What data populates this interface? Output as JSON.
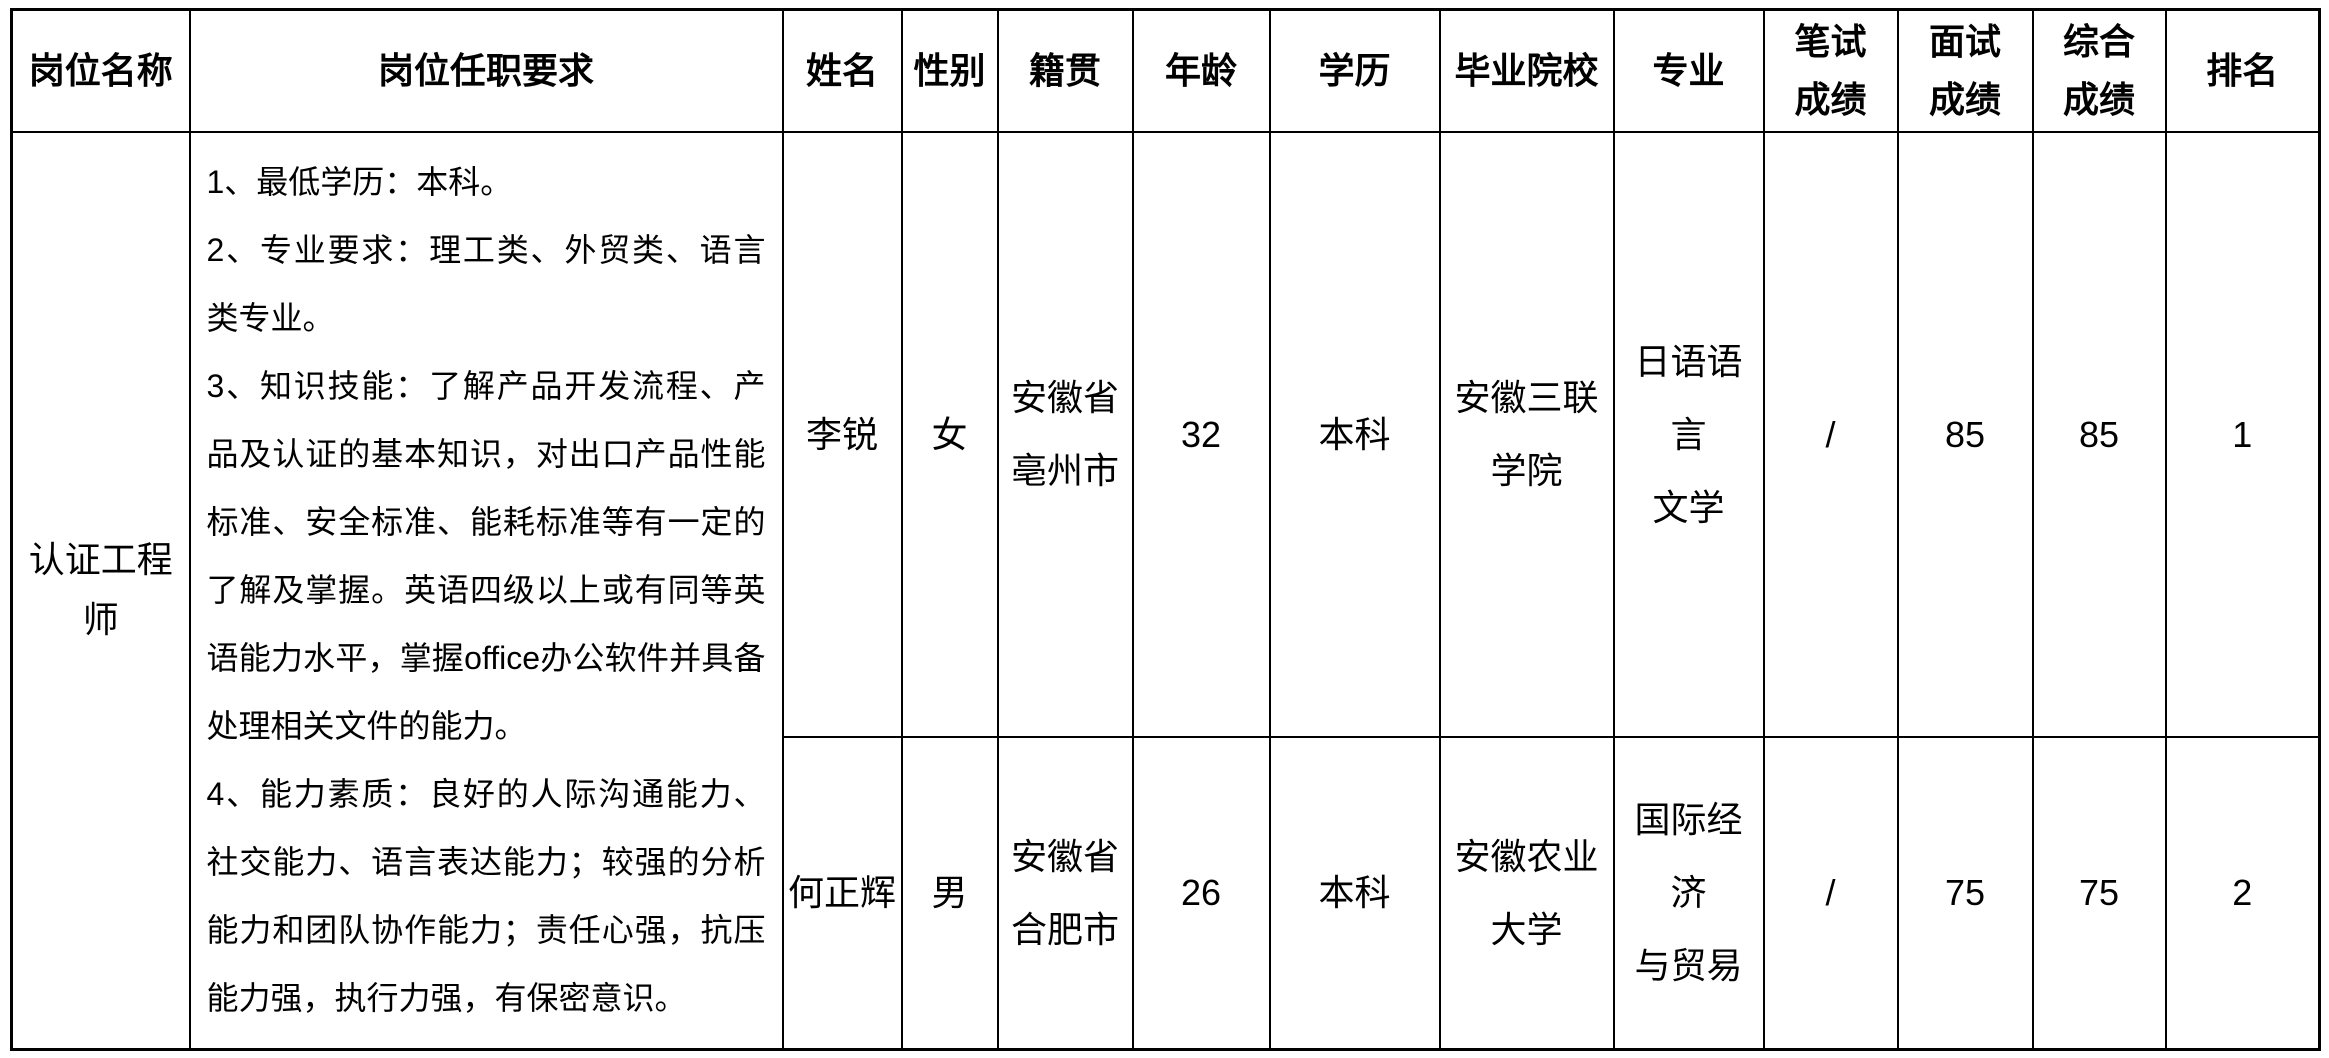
{
  "colors": {
    "text": "#000000",
    "border": "#000000",
    "background": "#ffffff"
  },
  "table": {
    "headers": [
      "岗位名称",
      "岗位任职要求",
      "姓名",
      "性别",
      "籍贯",
      "年龄",
      "学历",
      "毕业院校",
      "专业",
      "笔试\n成绩",
      "面试\n成绩",
      "综合\n成绩",
      "排名"
    ],
    "position_name": "认证工程师",
    "requirements": "1、最低学历：本科。\n2、专业要求：理工类、外贸类、语言类专业。\n3、知识技能：了解产品开发流程、产品及认证的基本知识，对出口产品性能标准、安全标准、能耗标准等有一定的了解及掌握。英语四级以上或有同等英语能力水平，掌握office办公软件并具备处理相关文件的能力。\n4、能力素质：良好的人际沟通能力、社交能力、语言表达能力；较强的分析能力和团队协作能力；责任心强，抗压能力强，执行力强，有保密意识。",
    "candidates": [
      {
        "name": "李锐",
        "gender": "女",
        "native_place": "安徽省\n亳州市",
        "age": "32",
        "education": "本科",
        "school": "安徽三联\n学院",
        "major": "日语语言\n文学",
        "written_score": "/",
        "interview_score": "85",
        "overall_score": "85",
        "rank": "1"
      },
      {
        "name": "何正辉",
        "gender": "男",
        "native_place": "安徽省\n合肥市",
        "age": "26",
        "education": "本科",
        "school": "安徽农业\n大学",
        "major": "国际经济\n与贸易",
        "written_score": "/",
        "interview_score": "75",
        "overall_score": "75",
        "rank": "2"
      }
    ]
  }
}
